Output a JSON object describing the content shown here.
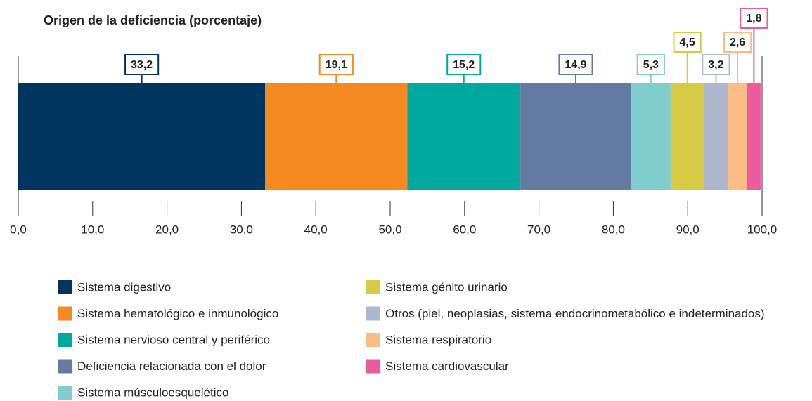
{
  "chart_data": {
    "type": "stacked_bar_horizontal",
    "title": "Origen de la deficiencia (porcentaje)",
    "series": [
      {
        "name": "Sistema digestivo",
        "color": "#00355f",
        "values": [
          33.2
        ],
        "value_labels": [
          "33,2"
        ]
      },
      {
        "name": "Sistema hematológico e inmunológico",
        "color": "#f58a23",
        "values": [
          19.1
        ],
        "value_labels": [
          "19,1"
        ]
      },
      {
        "name": "Sistema nervioso central y periférico",
        "color": "#00a99d",
        "values": [
          15.2
        ],
        "value_labels": [
          "15,2"
        ]
      },
      {
        "name": "Deficiencia relacionada con el dolor",
        "color": "#647ba1",
        "values": [
          14.9
        ],
        "value_labels": [
          "14,9"
        ]
      },
      {
        "name": "Sistema músculoesquelético",
        "color": "#7fcdcd",
        "values": [
          5.3
        ],
        "value_labels": [
          "5,3"
        ]
      },
      {
        "name": "Sistema génito urinario",
        "color": "#d6c944",
        "values": [
          4.5
        ],
        "value_labels": [
          "4,5"
        ]
      },
      {
        "name": "Otros (piel, neoplasias, sistema endocrinometabólico e indeterminados)",
        "color": "#adb8cf",
        "values": [
          3.2
        ],
        "value_labels": [
          "3,2"
        ]
      },
      {
        "name": "Sistema respiratorio",
        "color": "#fbbd85",
        "values": [
          2.6
        ],
        "value_labels": [
          "2,6"
        ]
      },
      {
        "name": "Sistema cardiovascular",
        "color": "#ec5a9f",
        "values": [
          1.8
        ],
        "value_labels": [
          "1,8"
        ]
      }
    ],
    "xlim": [
      0,
      100
    ],
    "xticks": [
      {
        "value": 0,
        "label": "0,0"
      },
      {
        "value": 10,
        "label": "10,0"
      },
      {
        "value": 20,
        "label": "20,0"
      },
      {
        "value": 30,
        "label": "30,0"
      },
      {
        "value": 40,
        "label": "40,0"
      },
      {
        "value": 50,
        "label": "50,0"
      },
      {
        "value": 60,
        "label": "60,0"
      },
      {
        "value": 70,
        "label": "70,0"
      },
      {
        "value": 80,
        "label": "80,0"
      },
      {
        "value": 90,
        "label": "90,0"
      },
      {
        "value": 100,
        "label": "100,0"
      }
    ]
  }
}
